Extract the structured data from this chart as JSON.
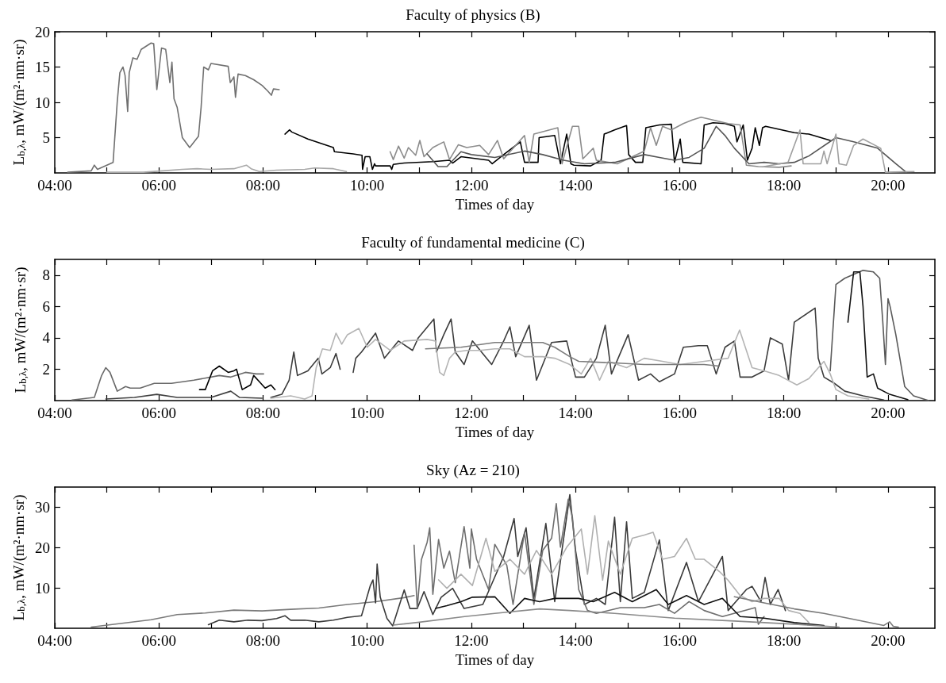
{
  "chart_data": [
    {
      "type": "line",
      "title": "Faculty of physics (B)",
      "xlabel": "Times of day",
      "ylabel": "L$_{b,λ}$, mW/(m²·nm·sr)",
      "xlim": [
        4,
        20.9
      ],
      "ylim": [
        0,
        20
      ],
      "yticks": [
        5,
        10,
        15,
        20
      ],
      "xticks": [
        {
          "value": 4,
          "label": "04:00"
        },
        {
          "value": 5,
          "label": null
        },
        {
          "value": 6,
          "label": "06:00"
        },
        {
          "value": 7,
          "label": null
        },
        {
          "value": 8,
          "label": "08:00"
        },
        {
          "value": 9,
          "label": null
        },
        {
          "value": 10,
          "label": "10:00"
        },
        {
          "value": 11,
          "label": null
        },
        {
          "value": 12,
          "label": "12:00"
        },
        {
          "value": 13,
          "label": null
        },
        {
          "value": 14,
          "label": "14:00"
        },
        {
          "value": 15,
          "label": null
        },
        {
          "value": 16,
          "label": "16:00"
        },
        {
          "value": 17,
          "label": null
        },
        {
          "value": 18,
          "label": "18:00"
        },
        {
          "value": 19,
          "label": null
        },
        {
          "value": 20,
          "label": "20:00"
        }
      ],
      "series": [
        {
          "color": "#707070",
          "x": [
            4.25,
            4.7,
            4.76,
            4.82,
            5.12,
            5.2,
            5.25,
            5.31,
            5.35,
            5.4,
            5.43,
            5.5,
            5.58,
            5.66,
            5.85,
            5.9,
            5.96,
            6.05,
            6.13,
            6.21,
            6.25,
            6.29,
            6.35,
            6.45,
            6.59,
            6.76,
            6.81,
            6.86,
            6.95,
            7.0,
            7.33,
            7.37,
            7.44,
            7.47,
            7.52,
            7.66,
            7.82,
            7.98,
            8.09,
            8.16,
            8.2,
            8.31
          ],
          "values": [
            0.1,
            0.3,
            1.1,
            0.5,
            1.5,
            10.1,
            14.2,
            15.0,
            13.8,
            8.7,
            14.2,
            16.3,
            16.1,
            17.5,
            18.4,
            18.3,
            11.8,
            17.7,
            17.5,
            12.8,
            15.7,
            10.5,
            9.3,
            5.0,
            3.6,
            5.2,
            9.3,
            15.0,
            14.6,
            15.5,
            15.1,
            12.8,
            13.6,
            10.7,
            14.0,
            13.8,
            13.2,
            12.4,
            11.6,
            11.0,
            11.9,
            11.8
          ]
        },
        {
          "color": "#a8a8a8",
          "x": [
            5.0,
            5.7,
            6.07,
            6.45,
            6.73,
            7.0,
            7.44,
            7.68,
            7.77,
            7.93,
            8.26,
            8.8,
            8.99,
            9.35,
            9.6
          ],
          "values": [
            0.1,
            0.1,
            0.3,
            0.5,
            0.6,
            0.5,
            0.6,
            1.1,
            0.6,
            0.2,
            0.4,
            0.5,
            0.7,
            0.6,
            0.2
          ]
        },
        {
          "color": "#000000",
          "x": [
            8.42,
            8.51,
            8.55,
            8.86,
            9.35,
            9.37,
            9.73,
            9.9,
            9.91,
            9.96,
            10.05,
            10.1,
            10.14,
            10.16,
            10.44,
            10.47,
            10.5,
            10.71,
            11.26,
            11.58,
            11.64,
            11.8,
            12.33,
            12.4,
            12.62,
            12.94,
            13.02,
            13.28,
            13.3,
            13.6,
            13.71,
            13.83,
            13.91,
            13.97,
            14.29,
            14.49,
            14.55,
            14.75,
            14.98,
            15.02,
            15.15,
            15.29,
            15.35,
            15.61,
            15.84,
            15.9,
            16.01,
            16.06,
            16.41,
            16.47,
            16.64,
            16.87,
            17.05,
            17.1,
            17.22,
            17.3,
            17.39,
            17.45,
            17.53,
            17.59,
            17.65,
            18.2,
            18.48,
            18.89
          ],
          "values": [
            5.5,
            6.1,
            5.8,
            4.8,
            3.6,
            3.0,
            2.7,
            2.5,
            0.5,
            2.3,
            2.3,
            0.5,
            1.3,
            1.0,
            1.0,
            0.5,
            1.2,
            1.4,
            1.6,
            1.8,
            1.4,
            2.3,
            1.8,
            1.3,
            2.6,
            4.4,
            1.5,
            1.5,
            5.0,
            5.3,
            1.3,
            5.5,
            1.3,
            1.1,
            1.0,
            1.8,
            5.5,
            6.1,
            6.7,
            2.6,
            1.5,
            1.5,
            6.4,
            6.8,
            6.9,
            1.5,
            4.8,
            1.5,
            1.3,
            6.8,
            7.1,
            7.0,
            6.6,
            4.4,
            6.8,
            1.8,
            3.5,
            6.4,
            3.9,
            6.4,
            6.6,
            5.7,
            5.5,
            4.6
          ]
        },
        {
          "color": "#8c8c8c",
          "x": [
            10.44,
            10.5,
            10.6,
            10.71,
            10.79,
            10.93,
            11.01,
            11.09,
            11.26,
            11.47,
            11.58,
            11.75,
            11.91,
            12.16,
            12.33,
            12.5,
            12.62,
            13.02,
            13.11,
            13.2,
            13.66,
            13.74,
            13.94,
            14.06,
            14.14,
            14.34,
            14.4,
            14.8,
            15.32,
            15.44,
            15.55,
            15.67,
            15.84,
            16.07,
            16.24,
            16.41,
            16.64,
            16.93,
            17.16,
            17.28,
            17.51,
            17.91,
            18.14
          ],
          "values": [
            3.0,
            1.9,
            3.8,
            2.1,
            3.6,
            2.5,
            4.6,
            2.3,
            3.6,
            4.4,
            1.9,
            4.0,
            3.6,
            3.9,
            2.6,
            4.6,
            2.0,
            5.3,
            1.5,
            5.5,
            6.4,
            1.3,
            6.6,
            6.6,
            2.0,
            3.5,
            1.8,
            1.3,
            3.1,
            6.4,
            3.9,
            6.6,
            6.1,
            7.0,
            7.5,
            7.9,
            7.5,
            7.0,
            6.8,
            1.1,
            0.9,
            0.8,
            1.0
          ]
        },
        {
          "color": "#555555",
          "x": [
            11.15,
            11.36,
            11.53,
            11.8,
            12.0,
            12.45,
            13.02,
            13.37,
            13.77,
            14.17,
            14.75,
            15.32,
            15.61,
            15.9,
            16.18,
            16.47,
            16.7,
            16.87,
            17.05,
            17.33,
            17.62,
            17.91,
            18.2,
            18.48,
            19.0,
            19.34,
            19.8,
            20.15,
            20.35
          ],
          "values": [
            2.7,
            0.9,
            0.9,
            3.0,
            2.6,
            2.2,
            3.1,
            2.6,
            1.8,
            1.3,
            1.5,
            2.6,
            2.2,
            1.8,
            2.2,
            3.5,
            6.6,
            5.3,
            3.5,
            1.3,
            1.5,
            1.3,
            1.5,
            2.4,
            5.0,
            4.4,
            3.5,
            1.3,
            0.1
          ]
        },
        {
          "color": "#a0a0a0",
          "x": [
            17.62,
            18.08,
            18.31,
            18.37,
            18.71,
            18.77,
            18.83,
            19.0,
            19.06,
            19.2,
            19.34,
            19.52,
            19.86,
            19.95,
            20.5
          ],
          "values": [
            0.9,
            1.5,
            6.1,
            1.3,
            1.3,
            3.1,
            1.3,
            5.5,
            1.3,
            1.1,
            3.9,
            4.8,
            3.5,
            0.1,
            0.2
          ]
        }
      ]
    },
    {
      "type": "line",
      "title": "Faculty of fundamental medicine (C)",
      "xlabel": "Times of day",
      "ylabel": "L$_{b,λ}$, mW/(m²·nm·sr)",
      "xlim": [
        4,
        20.9
      ],
      "ylim": [
        0,
        9
      ],
      "yticks": [
        2,
        4,
        6,
        8
      ],
      "xticks": [
        {
          "value": 4,
          "label": "04:00"
        },
        {
          "value": 5,
          "label": null
        },
        {
          "value": 6,
          "label": "06:00"
        },
        {
          "value": 7,
          "label": null
        },
        {
          "value": 8,
          "label": "08:00"
        },
        {
          "value": 9,
          "label": null
        },
        {
          "value": 10,
          "label": "10:00"
        },
        {
          "value": 11,
          "label": null
        },
        {
          "value": 12,
          "label": "12:00"
        },
        {
          "value": 13,
          "label": null
        },
        {
          "value": 14,
          "label": "14:00"
        },
        {
          "value": 15,
          "label": null
        },
        {
          "value": 16,
          "label": "16:00"
        },
        {
          "value": 17,
          "label": null
        },
        {
          "value": 18,
          "label": "18:00"
        },
        {
          "value": 19,
          "label": null
        },
        {
          "value": 20,
          "label": "20:00"
        }
      ],
      "series": [
        {
          "color": "#6a6a6a",
          "x": [
            4.33,
            4.76,
            4.9,
            4.98,
            5.06,
            5.2,
            5.36,
            5.45,
            5.64,
            5.91,
            6.24,
            6.67,
            7.16,
            7.38,
            7.66,
            7.87,
            8.01
          ],
          "values": [
            0.04,
            0.2,
            1.6,
            2.1,
            1.8,
            0.6,
            0.9,
            0.8,
            0.8,
            1.1,
            1.1,
            1.3,
            1.6,
            1.5,
            1.8,
            1.7,
            1.7
          ]
        },
        {
          "color": "#000000",
          "x": [
            6.78,
            6.89,
            7.03,
            7.16,
            7.33,
            7.44,
            7.49,
            7.6,
            7.76,
            7.82,
            7.93,
            8.04,
            8.15,
            8.23
          ],
          "values": [
            0.7,
            0.7,
            1.9,
            2.2,
            1.8,
            1.9,
            2.0,
            0.7,
            1.0,
            1.6,
            1.2,
            0.8,
            1.0,
            0.7
          ]
        },
        {
          "color": "#404040",
          "x": [
            4.98,
            5.53,
            5.96,
            6.35,
            7.0,
            7.38,
            7.55,
            7.98
          ],
          "values": [
            0.1,
            0.2,
            0.4,
            0.2,
            0.2,
            0.6,
            0.2,
            0.15
          ]
        },
        {
          "color": "#3c3c3c",
          "x": [
            8.15,
            8.36,
            8.5,
            8.59,
            8.66,
            8.86,
            9.06,
            9.13,
            9.29,
            9.4,
            9.48,
            9.6,
            9.73,
            9.78,
            9.89,
            10.16,
            10.33,
            10.6,
            10.87,
            10.98,
            11.28,
            11.33,
            11.47,
            11.61,
            11.69,
            11.86,
            12.02,
            12.39,
            12.62,
            12.74,
            12.85,
            13.11,
            13.25,
            13.54,
            13.83,
            14.0,
            14.17,
            14.4,
            14.57,
            14.69,
            15.01,
            15.21,
            15.44,
            15.61,
            15.9,
            16.07,
            16.36,
            16.53,
            16.7,
            16.87,
            17.05,
            17.16,
            17.39,
            17.62,
            17.74,
            17.97,
            18.09,
            18.2,
            18.6,
            18.66,
            18.77,
            18.97,
            19.17,
            19.52,
            19.92
          ],
          "values": [
            0.2,
            0.4,
            1.3,
            3.1,
            1.6,
            1.9,
            2.7,
            1.7,
            2.1,
            3.0,
            2.0,
            null,
            1.8,
            2.7,
            3.1,
            4.3,
            2.7,
            3.8,
            3.2,
            4.0,
            5.2,
            3.1,
            4.2,
            5.2,
            3.1,
            2.3,
            3.8,
            2.3,
            3.8,
            4.7,
            2.8,
            4.8,
            1.3,
            3.7,
            3.8,
            1.5,
            1.5,
            2.7,
            4.8,
            1.7,
            4.2,
            1.3,
            1.7,
            1.2,
            1.7,
            3.4,
            3.5,
            3.5,
            1.7,
            3.4,
            3.8,
            1.5,
            1.5,
            1.9,
            4.0,
            3.6,
            1.3,
            5.0,
            5.9,
            2.7,
            1.5,
            1.1,
            0.6,
            0.3,
            0.04
          ]
        },
        {
          "color": "#b4b4b4",
          "x": [
            8.15,
            8.53,
            8.8,
            8.94,
            9.02,
            9.14,
            9.29,
            9.4,
            9.51,
            9.62,
            9.84,
            10.0,
            10.16,
            10.44,
            10.71,
            11.15,
            11.31,
            11.39,
            11.47,
            11.58,
            11.69,
            11.91,
            12.16,
            12.45,
            12.74,
            13.02,
            13.37,
            13.6,
            13.89,
            14.11,
            14.29,
            14.46,
            14.63,
            14.98,
            15.32,
            15.67,
            16.01,
            16.47,
            16.93,
            17.15,
            17.28,
            17.39,
            17.62,
            17.91,
            18.25,
            18.48,
            18.77,
            18.89,
            19.0,
            19.23,
            19.63
          ],
          "values": [
            0.15,
            0.3,
            0.1,
            0.3,
            2.1,
            3.3,
            3.2,
            4.3,
            3.6,
            4.2,
            4.6,
            3.4,
            3.9,
            3.2,
            3.8,
            3.9,
            3.8,
            1.8,
            1.6,
            2.7,
            3.1,
            3.2,
            3.2,
            3.3,
            3.3,
            2.8,
            2.8,
            2.7,
            2.3,
            1.7,
            2.7,
            1.3,
            2.5,
            2.1,
            2.7,
            2.5,
            2.3,
            2.5,
            2.7,
            4.5,
            3.2,
            2.1,
            1.9,
            1.6,
            1.0,
            1.4,
            2.5,
            1.7,
            0.7,
            0.3,
            0.1
          ]
        },
        {
          "color": "#7c7c7c",
          "x": [
            11.12,
            11.8,
            12.45,
            13.02,
            13.37,
            13.6,
            13.89,
            14.06,
            14.75,
            15.32,
            15.9,
            16.47,
            16.76
          ],
          "values": [
            3.3,
            3.4,
            3.7,
            3.7,
            3.7,
            3.4,
            2.8,
            2.5,
            2.4,
            2.3,
            2.3,
            2.3,
            2.2
          ]
        },
        {
          "color": "#5a5a5a",
          "x": [
            18.89,
            19.0,
            19.17,
            19.52,
            19.72,
            19.84,
            19.9,
            19.95,
            20.0,
            20.04,
            20.15,
            20.32,
            20.49,
            20.78
          ],
          "values": [
            1.9,
            7.4,
            7.8,
            8.3,
            8.2,
            7.8,
            5.0,
            2.3,
            6.5,
            6.0,
            4.2,
            0.9,
            0.3,
            0.0
          ]
        },
        {
          "color": "#111111",
          "x": [
            19.23,
            19.34,
            19.46,
            19.52,
            19.6,
            19.72,
            19.8,
            20.03,
            20.38
          ],
          "values": [
            5.0,
            8.2,
            8.2,
            6.0,
            1.5,
            1.7,
            0.8,
            0.4,
            0.06
          ]
        }
      ]
    },
    {
      "type": "line",
      "title": "Sky (Az = 210)",
      "xlabel": "Times of day",
      "ylabel": "L$_{b,λ}$, mW/(m²·nm·sr)",
      "xlim": [
        4,
        20.9
      ],
      "ylim": [
        0,
        35
      ],
      "yticks": [
        10,
        20,
        30
      ],
      "xticks": [
        {
          "value": 4,
          "label": "04:00"
        },
        {
          "value": 5,
          "label": null
        },
        {
          "value": 6,
          "label": "06:00"
        },
        {
          "value": 7,
          "label": null
        },
        {
          "value": 8,
          "label": "08:00"
        },
        {
          "value": 9,
          "label": null
        },
        {
          "value": 10,
          "label": "10:00"
        },
        {
          "value": 11,
          "label": null
        },
        {
          "value": 12,
          "label": "12:00"
        },
        {
          "value": 13,
          "label": null
        },
        {
          "value": 14,
          "label": "14:00"
        },
        {
          "value": 15,
          "label": null
        },
        {
          "value": 16,
          "label": "16:00"
        },
        {
          "value": 17,
          "label": null
        },
        {
          "value": 18,
          "label": "18:00"
        },
        {
          "value": 19,
          "label": null
        },
        {
          "value": 20,
          "label": "20:00"
        }
      ],
      "series": [
        {
          "color": "#7a7a7a",
          "x": [
            4.7,
            5.85,
            6.35,
            6.89,
            7.44,
            7.98,
            8.53,
            9.07,
            9.62,
            10.16,
            10.71,
            10.9
          ],
          "values": [
            0.3,
            2.1,
            3.4,
            3.8,
            4.5,
            4.3,
            4.7,
            5.0,
            5.9,
            6.6,
            7.6,
            8.1
          ]
        },
        {
          "color": "#3a3a3a",
          "x": [
            6.95,
            7.16,
            7.44,
            7.71,
            7.98,
            8.26,
            8.42,
            8.53,
            8.8,
            9.07,
            9.35,
            9.62,
            9.89,
            10.06,
            10.11,
            10.16,
            10.19,
            10.25,
            10.38,
            10.49,
            10.71,
            10.82,
            10.96,
            11.09,
            11.26,
            11.42,
            11.64,
            11.86,
            12.22,
            12.62,
            12.82,
            12.89,
            13.05,
            13.2,
            13.43,
            13.6,
            13.89,
            14.0,
            14.17,
            14.4,
            14.57,
            14.75,
            14.86,
            14.98,
            15.09,
            15.32,
            15.61,
            15.78,
            16.13,
            16.36,
            16.82,
            16.93,
            17.28,
            17.39,
            17.56,
            17.64,
            17.74,
            17.89,
            18.03
          ],
          "values": [
            0.9,
            2.0,
            1.6,
            2.0,
            1.9,
            2.4,
            3.1,
            2.0,
            2.0,
            1.6,
            2.0,
            2.7,
            3.1,
            10.6,
            12.0,
            6.3,
            15.9,
            7.7,
            2.4,
            0.6,
            9.5,
            4.9,
            4.9,
            9.1,
            3.4,
            7.7,
            9.9,
            4.9,
            5.9,
            17.8,
            27.2,
            17.8,
            24.9,
            7.4,
            26.0,
            6.6,
            33.1,
            19.3,
            5.9,
            7.4,
            5.9,
            27.5,
            6.6,
            26.4,
            7.4,
            8.9,
            21.9,
            4.4,
            16.3,
            6.6,
            17.8,
            4.4,
            9.6,
            10.4,
            6.6,
            12.6,
            5.9,
            9.6,
            4.4
          ]
        },
        {
          "color": "#6e6e6e",
          "x": [
            10.9,
            10.96,
            11.04,
            11.15,
            11.2,
            11.26,
            11.37,
            11.47,
            11.58,
            11.69,
            11.86,
            11.97,
            12.0,
            12.1,
            12.33,
            12.45,
            12.68,
            12.8,
            13.02,
            13.2,
            13.37,
            13.54,
            13.63,
            13.71,
            13.86,
            13.94,
            14.06,
            14.23,
            14.4,
            14.86,
            15.32,
            15.61,
            15.9,
            16.18,
            16.47,
            16.82,
            17.45,
            17.51,
            17.62
          ],
          "values": [
            20.6,
            4.9,
            17.0,
            21.3,
            24.9,
            8.4,
            22.0,
            14.9,
            19.1,
            11.3,
            25.2,
            14.9,
            24.6,
            17.1,
            9.6,
            20.8,
            15.6,
            5.9,
            23.8,
            5.9,
            19.3,
            22.3,
            30.9,
            20.1,
            32.0,
            27.5,
            9.6,
            4.4,
            3.7,
            5.1,
            5.1,
            5.9,
            3.7,
            6.6,
            4.4,
            2.9,
            5.1,
            1.0,
            2.9
          ]
        },
        {
          "color": "#b0b0b0",
          "x": [
            11.37,
            11.53,
            11.8,
            12.02,
            12.28,
            12.45,
            12.74,
            13.02,
            13.25,
            13.54,
            13.83,
            14.11,
            14.23,
            14.37,
            14.52,
            14.63,
            14.86,
            15.09,
            15.32,
            15.49,
            15.67,
            15.9,
            16.13,
            16.3,
            16.47,
            16.76,
            16.93,
            17.16,
            17.39,
            17.62,
            17.91,
            18.09,
            18.31,
            18.48
          ],
          "values": [
            12.0,
            9.9,
            13.4,
            10.6,
            22.3,
            14.1,
            17.1,
            13.4,
            19.3,
            13.4,
            20.1,
            24.6,
            13.4,
            27.9,
            11.9,
            21.6,
            13.4,
            22.3,
            23.1,
            23.8,
            17.1,
            17.8,
            22.3,
            17.1,
            17.1,
            14.1,
            11.9,
            8.1,
            6.6,
            7.4,
            7.4,
            4.4,
            3.7,
            1.4
          ]
        },
        {
          "color": "#111111",
          "x": [
            11.31,
            11.53,
            11.8,
            12.02,
            12.45,
            12.74,
            13.02,
            13.31,
            13.6,
            14.06,
            14.34,
            14.75,
            15.09,
            15.55,
            15.78,
            16.13,
            16.47,
            16.82,
            17.16,
            17.62,
            18.2,
            18.77
          ],
          "values": [
            4.9,
            5.6,
            6.6,
            7.7,
            7.8,
            3.7,
            7.4,
            6.6,
            7.4,
            7.4,
            6.6,
            8.9,
            6.6,
            9.6,
            5.9,
            8.1,
            5.9,
            7.4,
            2.9,
            2.5,
            1.4,
            0.7
          ]
        },
        {
          "color": "#8a8a8a",
          "x": [
            10.5,
            11.0,
            11.87,
            12.45,
            13.31,
            13.89,
            14.75,
            15.9,
            17.05,
            18.2,
            19.06
          ],
          "values": [
            0.8,
            1.5,
            2.9,
            3.7,
            4.8,
            4.4,
            3.7,
            2.5,
            1.8,
            1.0,
            0.3
          ]
        },
        {
          "color": "#7a7a7a",
          "x": [
            17.05,
            17.62,
            18.2,
            18.77,
            19.34,
            19.92,
            20.03,
            20.1,
            20.2
          ],
          "values": [
            7.8,
            6.3,
            4.8,
            3.7,
            2.2,
            0.7,
            1.6,
            0.5,
            0.3
          ]
        }
      ]
    }
  ]
}
